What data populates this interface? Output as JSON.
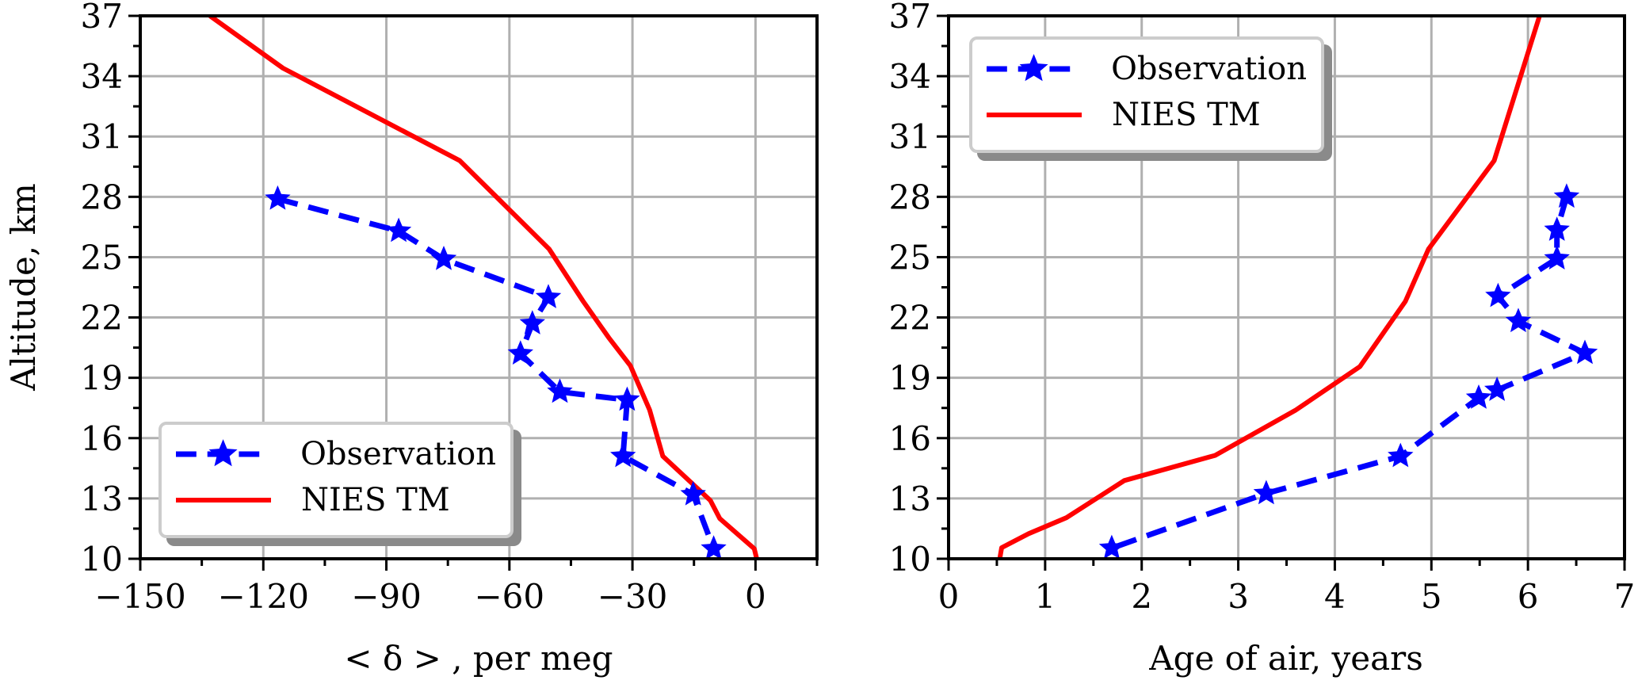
{
  "chart_data": [
    {
      "type": "line",
      "xlabel": "< δ > , per meg",
      "ylabel": "Altitude, km",
      "xlim": [
        -150,
        15
      ],
      "ylim": [
        10,
        37
      ],
      "xticks": [
        -150,
        -120,
        -90,
        -60,
        -30,
        0
      ],
      "xtick_labels": [
        "−150",
        "−120",
        "−90",
        "−60",
        "−30",
        "0"
      ],
      "xminor_step": 15,
      "yticks": [
        10,
        13,
        16,
        19,
        22,
        25,
        28,
        31,
        34,
        37
      ],
      "ytick_labels": [
        "10",
        "13",
        "16",
        "19",
        "22",
        "25",
        "28",
        "31",
        "34",
        "37"
      ],
      "yminor_step": 1.5,
      "grid": true,
      "legend_position": "lower-left",
      "series": [
        {
          "name": "Observation",
          "style": "dashed-star",
          "color": "#0000ff",
          "x": [
            -116.5,
            -87,
            -76,
            -50.5,
            -54.4,
            -57.3,
            -47.7,
            -31.3,
            -32.3,
            -15.2,
            -10.2
          ],
          "y": [
            27.9,
            26.3,
            24.9,
            23.0,
            21.7,
            20.2,
            18.3,
            17.9,
            15.1,
            13.2,
            10.5
          ]
        },
        {
          "name": "NIES TM",
          "style": "solid",
          "color": "#ff0000",
          "x": [
            -133,
            -115.2,
            -72.1,
            -50.3,
            -42,
            -35.8,
            -30.5,
            -25.8,
            -22.6,
            -11,
            -8.7,
            -4.2,
            -0.3,
            0.3
          ],
          "y": [
            37,
            34.4,
            29.8,
            25.4,
            22.8,
            21.0,
            19.6,
            17.4,
            15.1,
            12.9,
            12.0,
            11.2,
            10.5,
            10.0
          ]
        }
      ]
    },
    {
      "type": "line",
      "xlabel": "Age of air, years",
      "ylabel": "",
      "xlim": [
        0,
        7
      ],
      "ylim": [
        10,
        37
      ],
      "xticks": [
        0,
        1,
        2,
        3,
        4,
        5,
        6,
        7
      ],
      "xtick_labels": [
        "0",
        "1",
        "2",
        "3",
        "4",
        "5",
        "6",
        "7"
      ],
      "xminor_step": 0.5,
      "yticks": [
        10,
        13,
        16,
        19,
        22,
        25,
        28,
        31,
        34,
        37
      ],
      "ytick_labels": [
        "10",
        "13",
        "16",
        "19",
        "22",
        "25",
        "28",
        "31",
        "34",
        "37"
      ],
      "yminor_step": 1.5,
      "grid": true,
      "legend_position": "upper-left",
      "series": [
        {
          "name": "Observation",
          "style": "dashed-star",
          "color": "#0000ff",
          "x": [
            6.4,
            6.3,
            6.3,
            5.69,
            5.9,
            6.59,
            5.68,
            5.49,
            4.68,
            3.29,
            1.69
          ],
          "y": [
            28.0,
            26.35,
            24.93,
            23.06,
            21.81,
            20.23,
            18.39,
            18.0,
            15.1,
            13.25,
            10.53
          ]
        },
        {
          "name": "NIES TM",
          "style": "solid",
          "color": "#ff0000",
          "x": [
            0.53,
            0.55,
            0.83,
            1.22,
            1.82,
            2.76,
            3.59,
            4.26,
            4.73,
            4.97,
            5.65,
            6.12
          ],
          "y": [
            10.0,
            10.55,
            11.25,
            12.04,
            13.89,
            15.14,
            17.38,
            19.56,
            22.8,
            25.4,
            29.8,
            37.0
          ]
        }
      ]
    }
  ]
}
